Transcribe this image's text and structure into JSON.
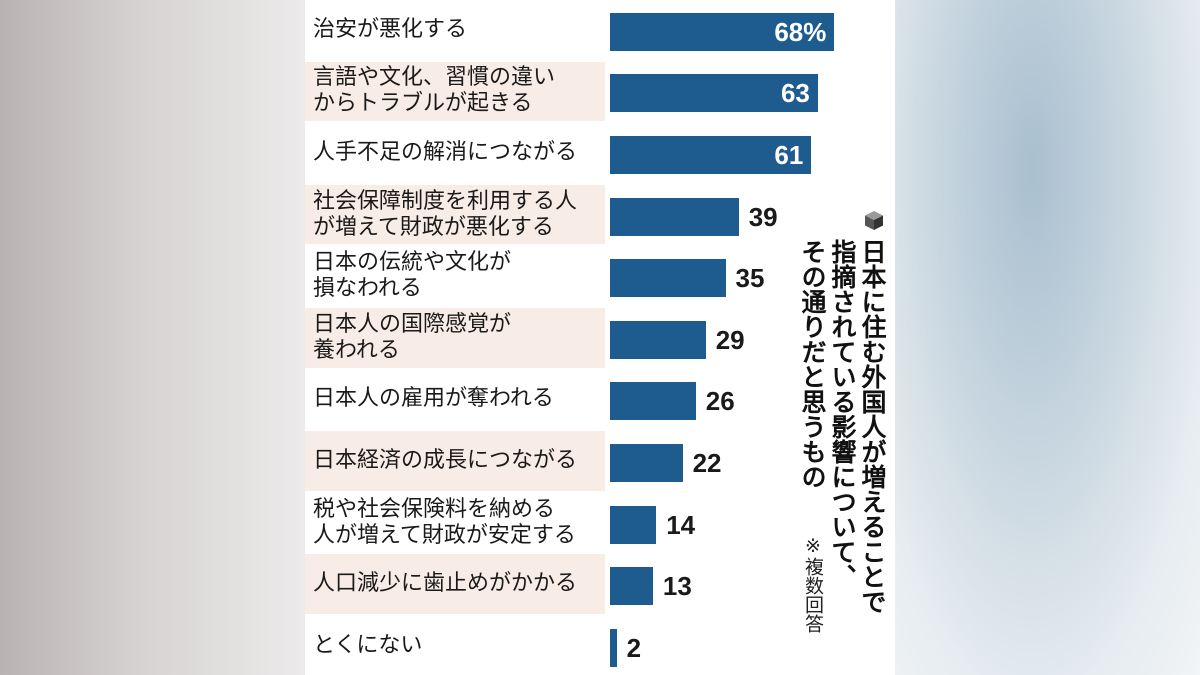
{
  "chart_data": {
    "type": "bar",
    "orientation": "horizontal",
    "title": "日本に住む外国人が増えることで指摘されている影響について、その通りだと思うもの",
    "note": "※複数回答",
    "unit_suffix_first": "%",
    "xlim": [
      0,
      100
    ],
    "grid": false,
    "legend": "none",
    "bar_color": "#1e5b8e",
    "categories": [
      "治安が悪化する",
      "言語や文化、習慣の違い\nからトラブルが起きる",
      "人手不足の解消につながる",
      "社会保障制度を利用する人\nが増えて財政が悪化する",
      "日本の伝統や文化が\n損なわれる",
      "日本人の国際感覚が\n養われる",
      "日本人の雇用が奪われる",
      "日本経済の成長につながる",
      "税や社会保険料を納める\n人が増えて財政が安定する",
      "人口減少に歯止めがかかる",
      "とくにない"
    ],
    "values": [
      68,
      63,
      61,
      39,
      35,
      29,
      26,
      22,
      14,
      13,
      2
    ],
    "value_labels": [
      "68%",
      "63",
      "61",
      "39",
      "35",
      "29",
      "26",
      "22",
      "14",
      "13",
      "2"
    ]
  }
}
